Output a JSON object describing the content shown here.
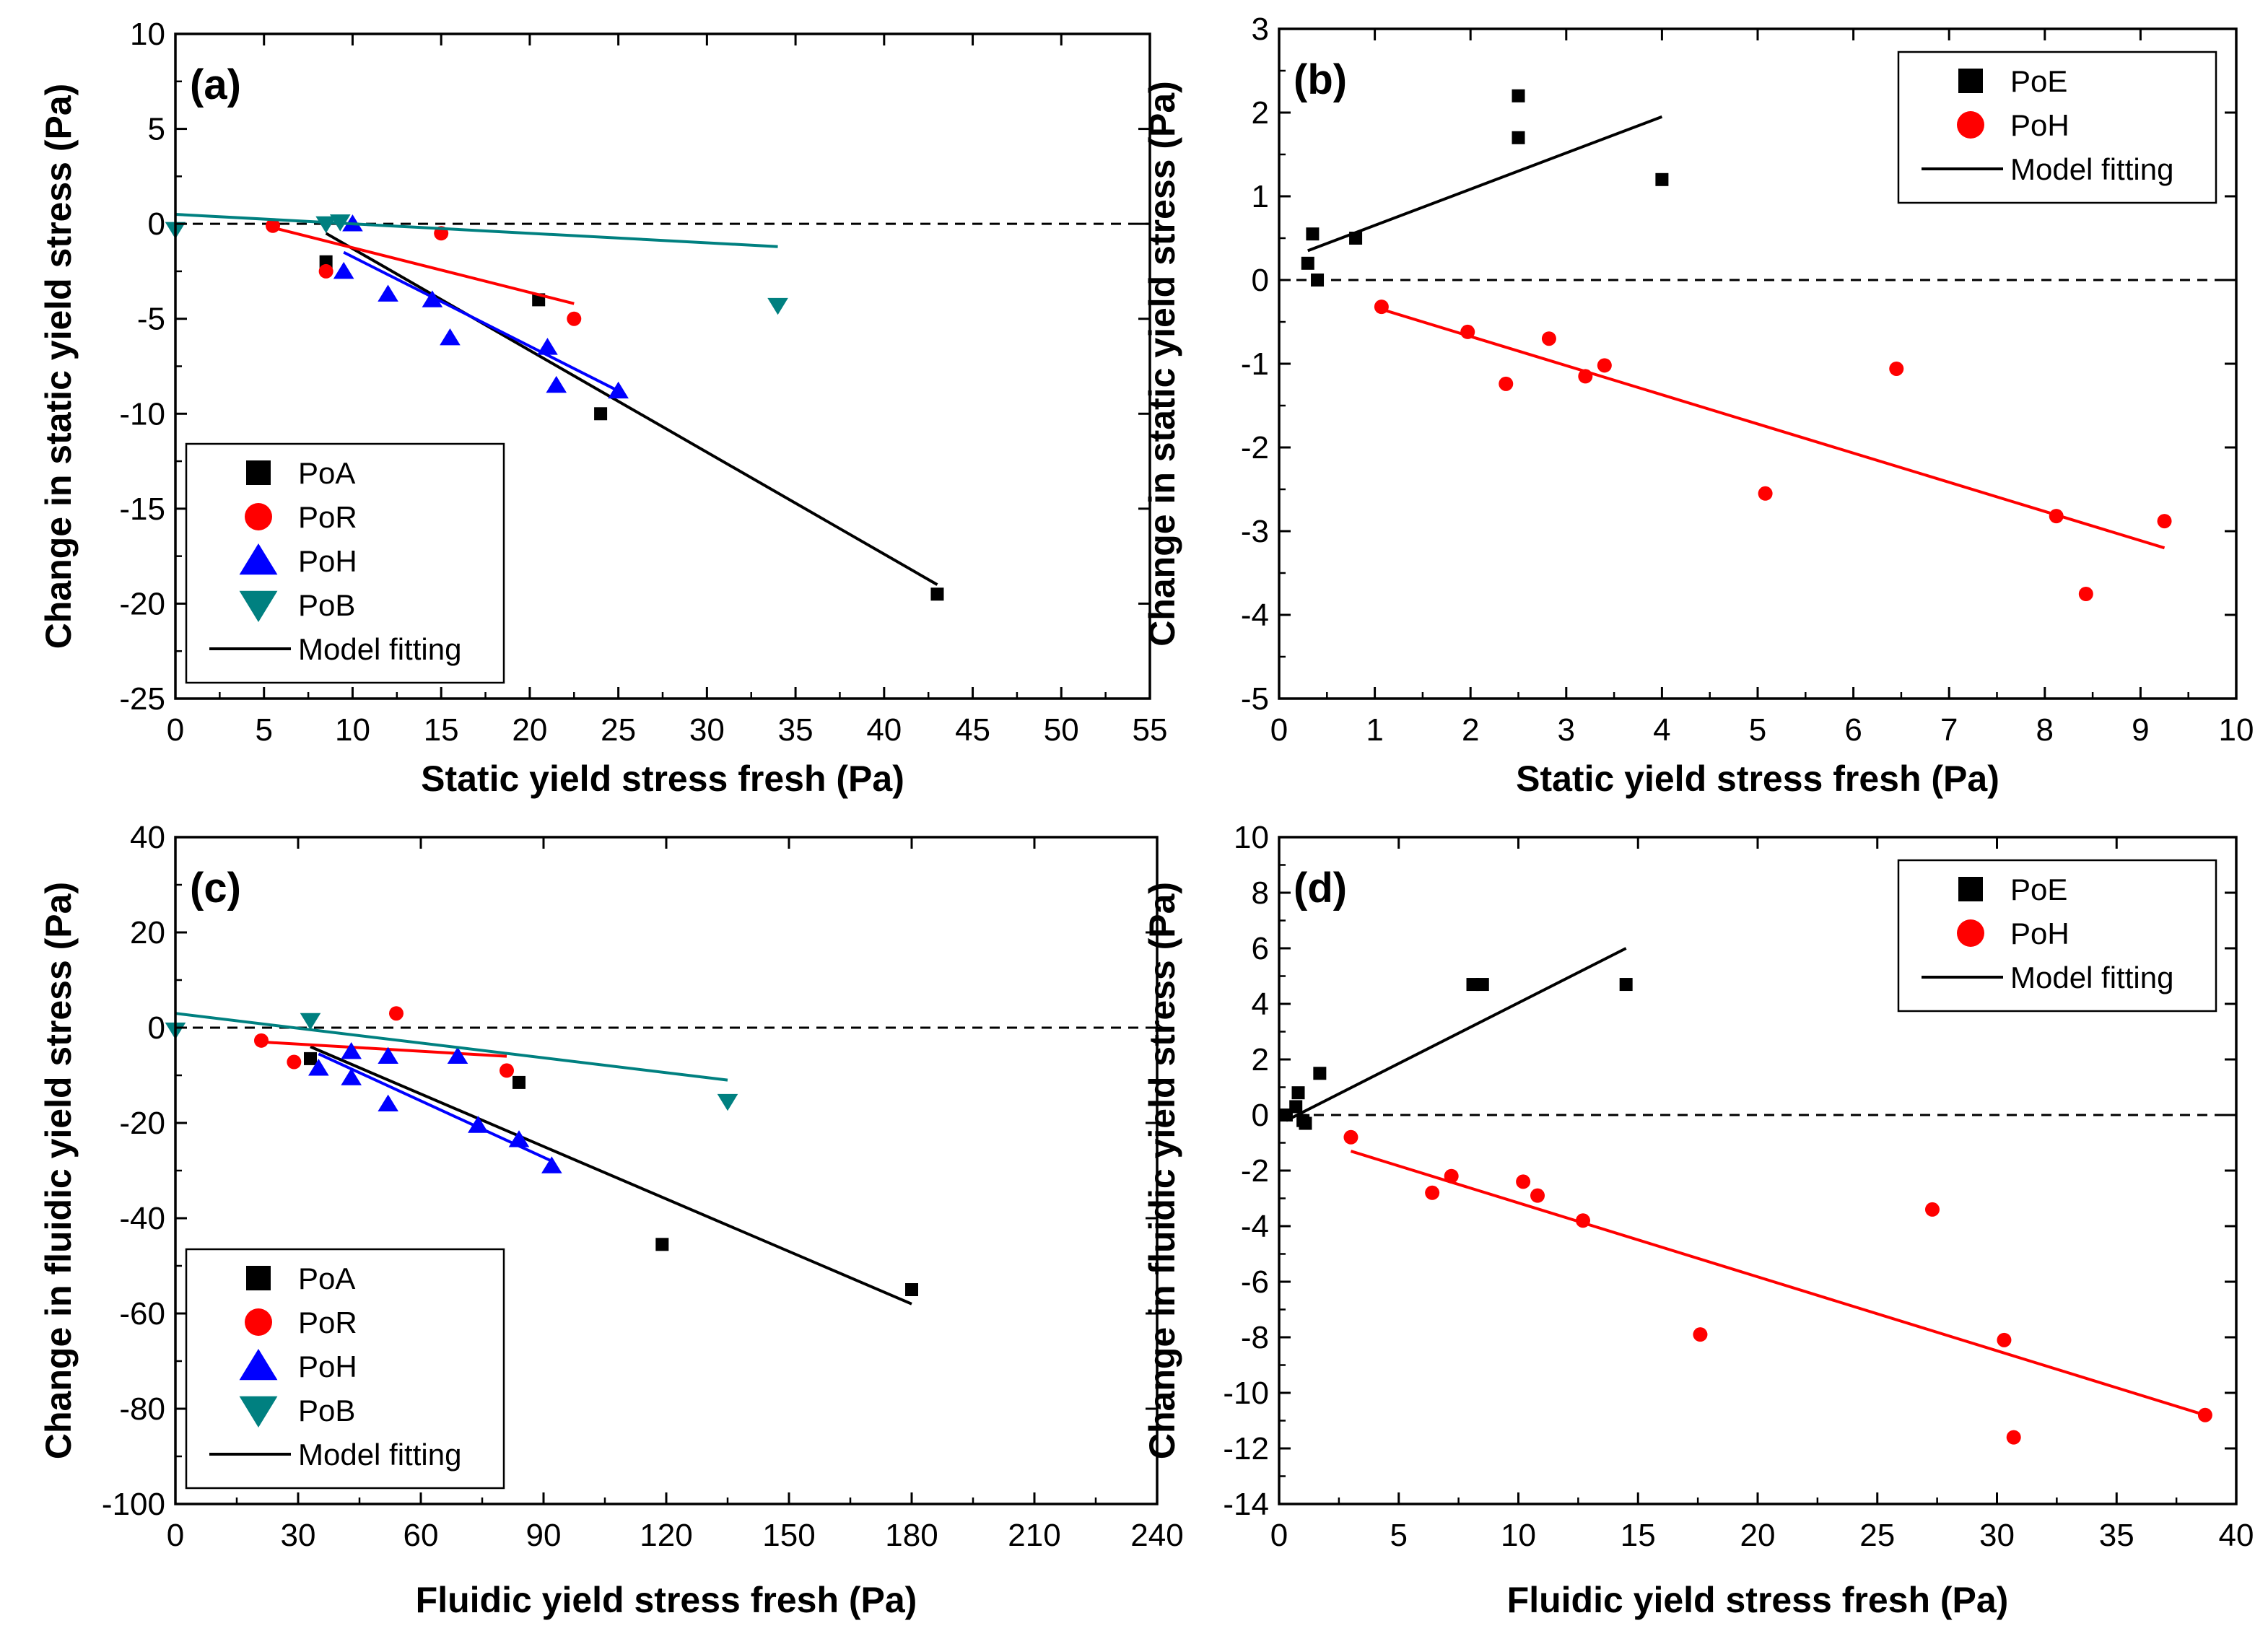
{
  "chart_data": [
    {
      "type": "scatter",
      "panel_label": "(a)",
      "xlabel": "Static yield stress fresh (Pa)",
      "ylabel": "Change in static yield stress (Pa)",
      "xlim": [
        0,
        55
      ],
      "ylim": [
        -25,
        10
      ],
      "xticks": [
        0,
        5,
        10,
        15,
        20,
        25,
        30,
        35,
        40,
        45,
        50,
        55
      ],
      "yticks": [
        -25,
        -20,
        -15,
        -10,
        -5,
        0,
        5,
        10
      ],
      "legend_position": "lower-left",
      "legend_fit_label": "Model fitting",
      "zero_line": true,
      "series": [
        {
          "name": "PoA",
          "marker": "square",
          "color": "#000000",
          "x": [
            8.5,
            20.5,
            24,
            43
          ],
          "y": [
            -2,
            -4,
            -10,
            -19.5
          ],
          "fit": [
            [
              8.5,
              -0.5
            ],
            [
              43,
              -19
            ]
          ]
        },
        {
          "name": "PoR",
          "marker": "circle",
          "color": "#ff0000",
          "x": [
            5.5,
            8.5,
            15,
            22.5
          ],
          "y": [
            -0.1,
            -2.5,
            -0.5,
            -5
          ],
          "fit": [
            [
              5.5,
              -0.2
            ],
            [
              22.5,
              -4.2
            ]
          ]
        },
        {
          "name": "PoH",
          "marker": "triangle-up",
          "color": "#0000ff",
          "x": [
            9.5,
            10,
            12,
            14.5,
            15.5,
            21,
            21.5,
            25
          ],
          "y": [
            -2.5,
            0,
            -3.7,
            -4,
            -6,
            -6.5,
            -8.5,
            -8.8
          ],
          "fit": [
            [
              9.5,
              -1.5
            ],
            [
              25,
              -8.8
            ]
          ]
        },
        {
          "name": "PoB",
          "marker": "triangle-down",
          "color": "#008080",
          "x": [
            0,
            8.5,
            9.3,
            34
          ],
          "y": [
            -0.3,
            0,
            0.1,
            -4.3
          ],
          "fit": [
            [
              0,
              0.5
            ],
            [
              34,
              -1.2
            ]
          ]
        }
      ]
    },
    {
      "type": "scatter",
      "panel_label": "(b)",
      "xlabel": "Static yield stress fresh (Pa)",
      "ylabel": "Change in static yield stress (Pa)",
      "xlim": [
        0,
        10
      ],
      "ylim": [
        -5,
        3
      ],
      "xticks": [
        0,
        1,
        2,
        3,
        4,
        5,
        6,
        7,
        8,
        9,
        10
      ],
      "yticks": [
        -5,
        -4,
        -3,
        -2,
        -1,
        0,
        1,
        2,
        3
      ],
      "legend_position": "top-right",
      "legend_fit_label": "Model fitting",
      "zero_line": true,
      "series": [
        {
          "name": "PoE",
          "marker": "square",
          "color": "#000000",
          "x": [
            0.3,
            0.35,
            0.4,
            0.8,
            2.5,
            2.5,
            4
          ],
          "y": [
            0.2,
            0.55,
            0,
            0.5,
            2.2,
            1.7,
            1.2
          ],
          "fit": [
            [
              0.3,
              0.35
            ],
            [
              4,
              1.95
            ]
          ]
        },
        {
          "name": "PoH",
          "marker": "circle",
          "color": "#ff0000",
          "x": [
            1.07,
            1.97,
            2.37,
            2.82,
            3.2,
            3.4,
            5.08,
            6.45,
            8.12,
            8.43,
            9.25
          ],
          "y": [
            -0.32,
            -0.62,
            -1.24,
            -0.7,
            -1.15,
            -1.02,
            -2.55,
            -1.06,
            -2.82,
            -3.75,
            -2.88
          ],
          "fit": [
            [
              1.07,
              -0.35
            ],
            [
              9.25,
              -3.2
            ]
          ]
        }
      ]
    },
    {
      "type": "scatter",
      "panel_label": "(c)",
      "xlabel": "Fluidic yield stress fresh (Pa)",
      "ylabel": "Change in fluidic yield stress (Pa)",
      "xlim": [
        0,
        240
      ],
      "ylim": [
        -100,
        40
      ],
      "xticks": [
        0,
        30,
        60,
        90,
        120,
        150,
        180,
        210,
        240
      ],
      "yticks": [
        -100,
        -80,
        -60,
        -40,
        -20,
        0,
        20,
        40
      ],
      "legend_position": "lower-left",
      "legend_fit_label": "Model fitting",
      "zero_line": true,
      "series": [
        {
          "name": "PoA",
          "marker": "square",
          "color": "#000000",
          "x": [
            33,
            84,
            119,
            180
          ],
          "y": [
            -6.5,
            -11.5,
            -45.5,
            -55
          ],
          "fit": [
            [
              33,
              -4
            ],
            [
              180,
              -58
            ]
          ]
        },
        {
          "name": "PoR",
          "marker": "circle",
          "color": "#ff0000",
          "x": [
            21,
            29,
            54,
            81
          ],
          "y": [
            -2.7,
            -7.2,
            3,
            -9
          ],
          "fit": [
            [
              21,
              -3
            ],
            [
              81,
              -6
            ]
          ]
        },
        {
          "name": "PoH",
          "marker": "triangle-up",
          "color": "#0000ff",
          "x": [
            35,
            43,
            43,
            52,
            52,
            69,
            74,
            84,
            92
          ],
          "y": [
            -8.5,
            -10.5,
            -5,
            -6,
            -16,
            -6,
            -20.5,
            -23.5,
            -29
          ],
          "fit": [
            [
              35,
              -5.5
            ],
            [
              92,
              -28
            ]
          ]
        },
        {
          "name": "PoB",
          "marker": "triangle-down",
          "color": "#008080",
          "x": [
            0,
            33,
            135
          ],
          "y": [
            -0.5,
            1.5,
            -15.5
          ],
          "fit": [
            [
              0,
              3
            ],
            [
              135,
              -11
            ]
          ]
        }
      ]
    },
    {
      "type": "scatter",
      "panel_label": "(d)",
      "xlabel": "Fluidic yield stress fresh (Pa)",
      "ylabel": "Change in fluidic yield stress (Pa)",
      "xlim": [
        0,
        40
      ],
      "ylim": [
        -14,
        10
      ],
      "xticks": [
        0,
        5,
        10,
        15,
        20,
        25,
        30,
        35,
        40
      ],
      "yticks": [
        -14,
        -12,
        -10,
        -8,
        -6,
        -4,
        -2,
        0,
        2,
        4,
        6,
        8,
        10
      ],
      "legend_position": "top-right",
      "legend_fit_label": "Model fitting",
      "zero_line": true,
      "series": [
        {
          "name": "PoE",
          "marker": "square",
          "color": "#000000",
          "x": [
            0.3,
            0.7,
            0.8,
            1.0,
            1.1,
            1.7,
            8.1,
            8.5,
            14.5
          ],
          "y": [
            0,
            0.3,
            0.8,
            -0.2,
            -0.3,
            1.5,
            4.7,
            4.7,
            4.7
          ],
          "fit": [
            [
              0.3,
              -0.2
            ],
            [
              14.5,
              6
            ]
          ]
        },
        {
          "name": "PoH",
          "marker": "circle",
          "color": "#ff0000",
          "x": [
            3,
            6.4,
            7.2,
            10.2,
            10.8,
            12.7,
            17.6,
            27.3,
            30.3,
            30.7,
            38.7
          ],
          "y": [
            -0.8,
            -2.8,
            -2.2,
            -2.4,
            -2.9,
            -3.8,
            -7.9,
            -3.4,
            -8.1,
            -11.6,
            -10.8
          ],
          "fit": [
            [
              3,
              -1.3
            ],
            [
              38.7,
              -10.8
            ]
          ]
        }
      ]
    }
  ]
}
